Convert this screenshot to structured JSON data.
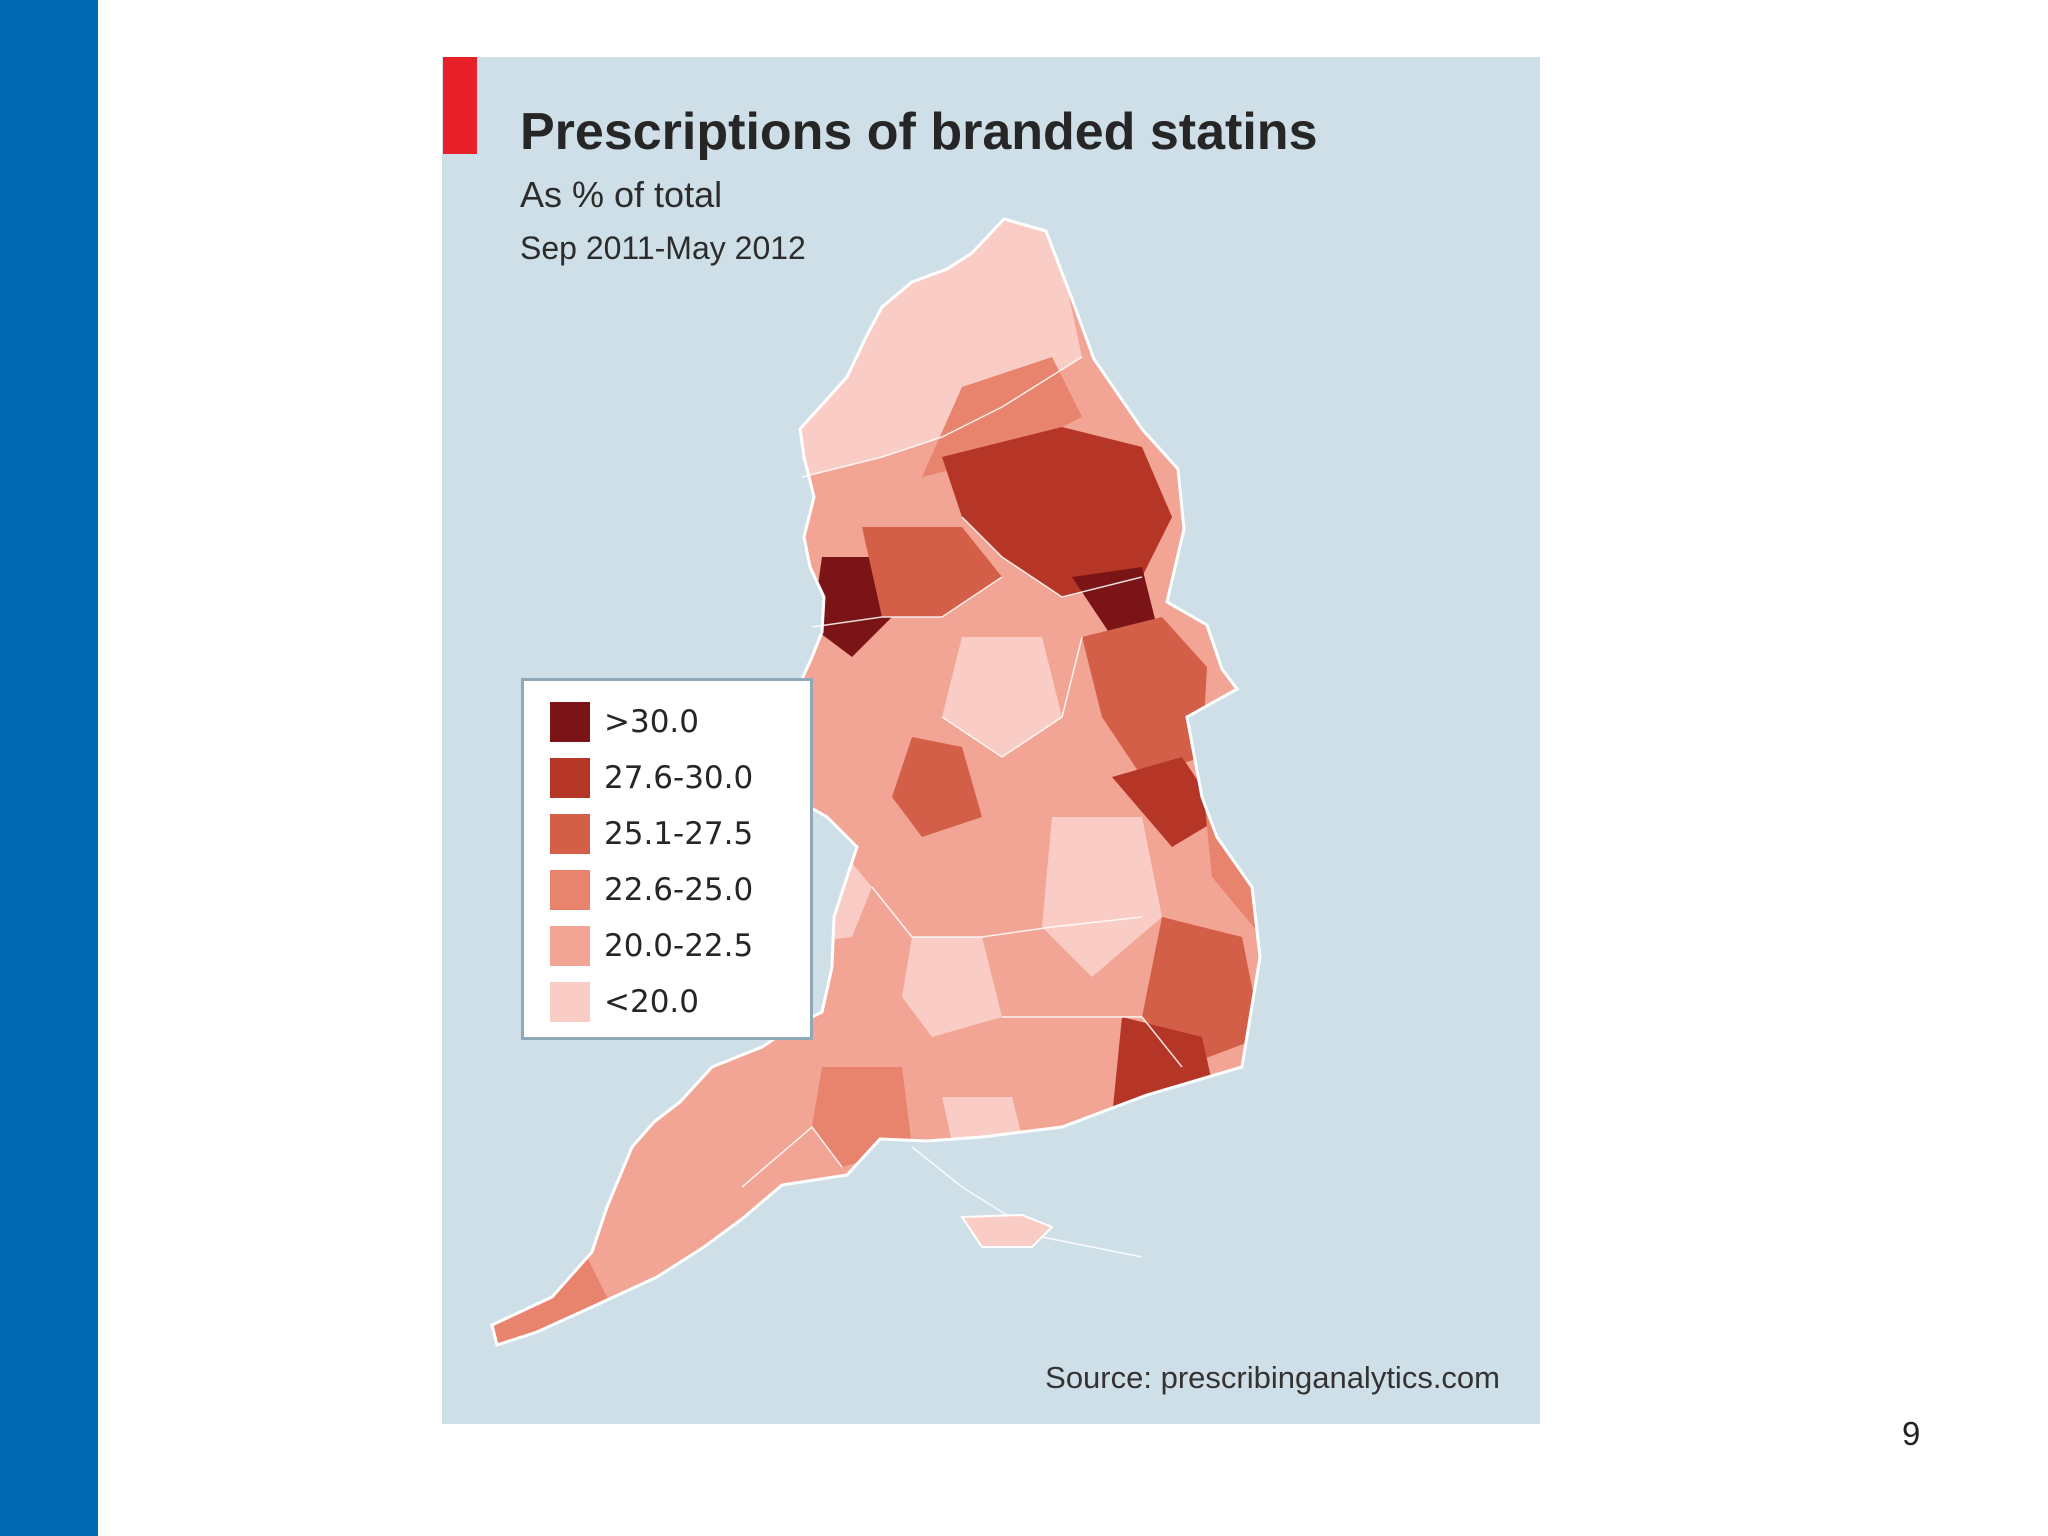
{
  "slide": {
    "page_number": "9",
    "sidebar_color": "#0069b4",
    "background": "#ffffff"
  },
  "map": {
    "title": "Prescriptions of branded statins",
    "subtitle": "As % of total",
    "period": "Sep 2011-May 2012",
    "source": "Source: prescribinganalytics.com",
    "background_color": "#cfdfe8",
    "accent_color": "#e8202a",
    "legend": [
      {
        "label": ">30.0",
        "color": "#7a1416"
      },
      {
        "label": "27.6-30.0",
        "color": "#b53626"
      },
      {
        "label": "25.1-27.5",
        "color": "#d45f49"
      },
      {
        "label": "22.6-25.0",
        "color": "#e8836e"
      },
      {
        "label": "20.0-22.5",
        "color": "#f2a594"
      },
      {
        "label": "<20.0",
        "color": "#f9cdc5"
      }
    ]
  }
}
